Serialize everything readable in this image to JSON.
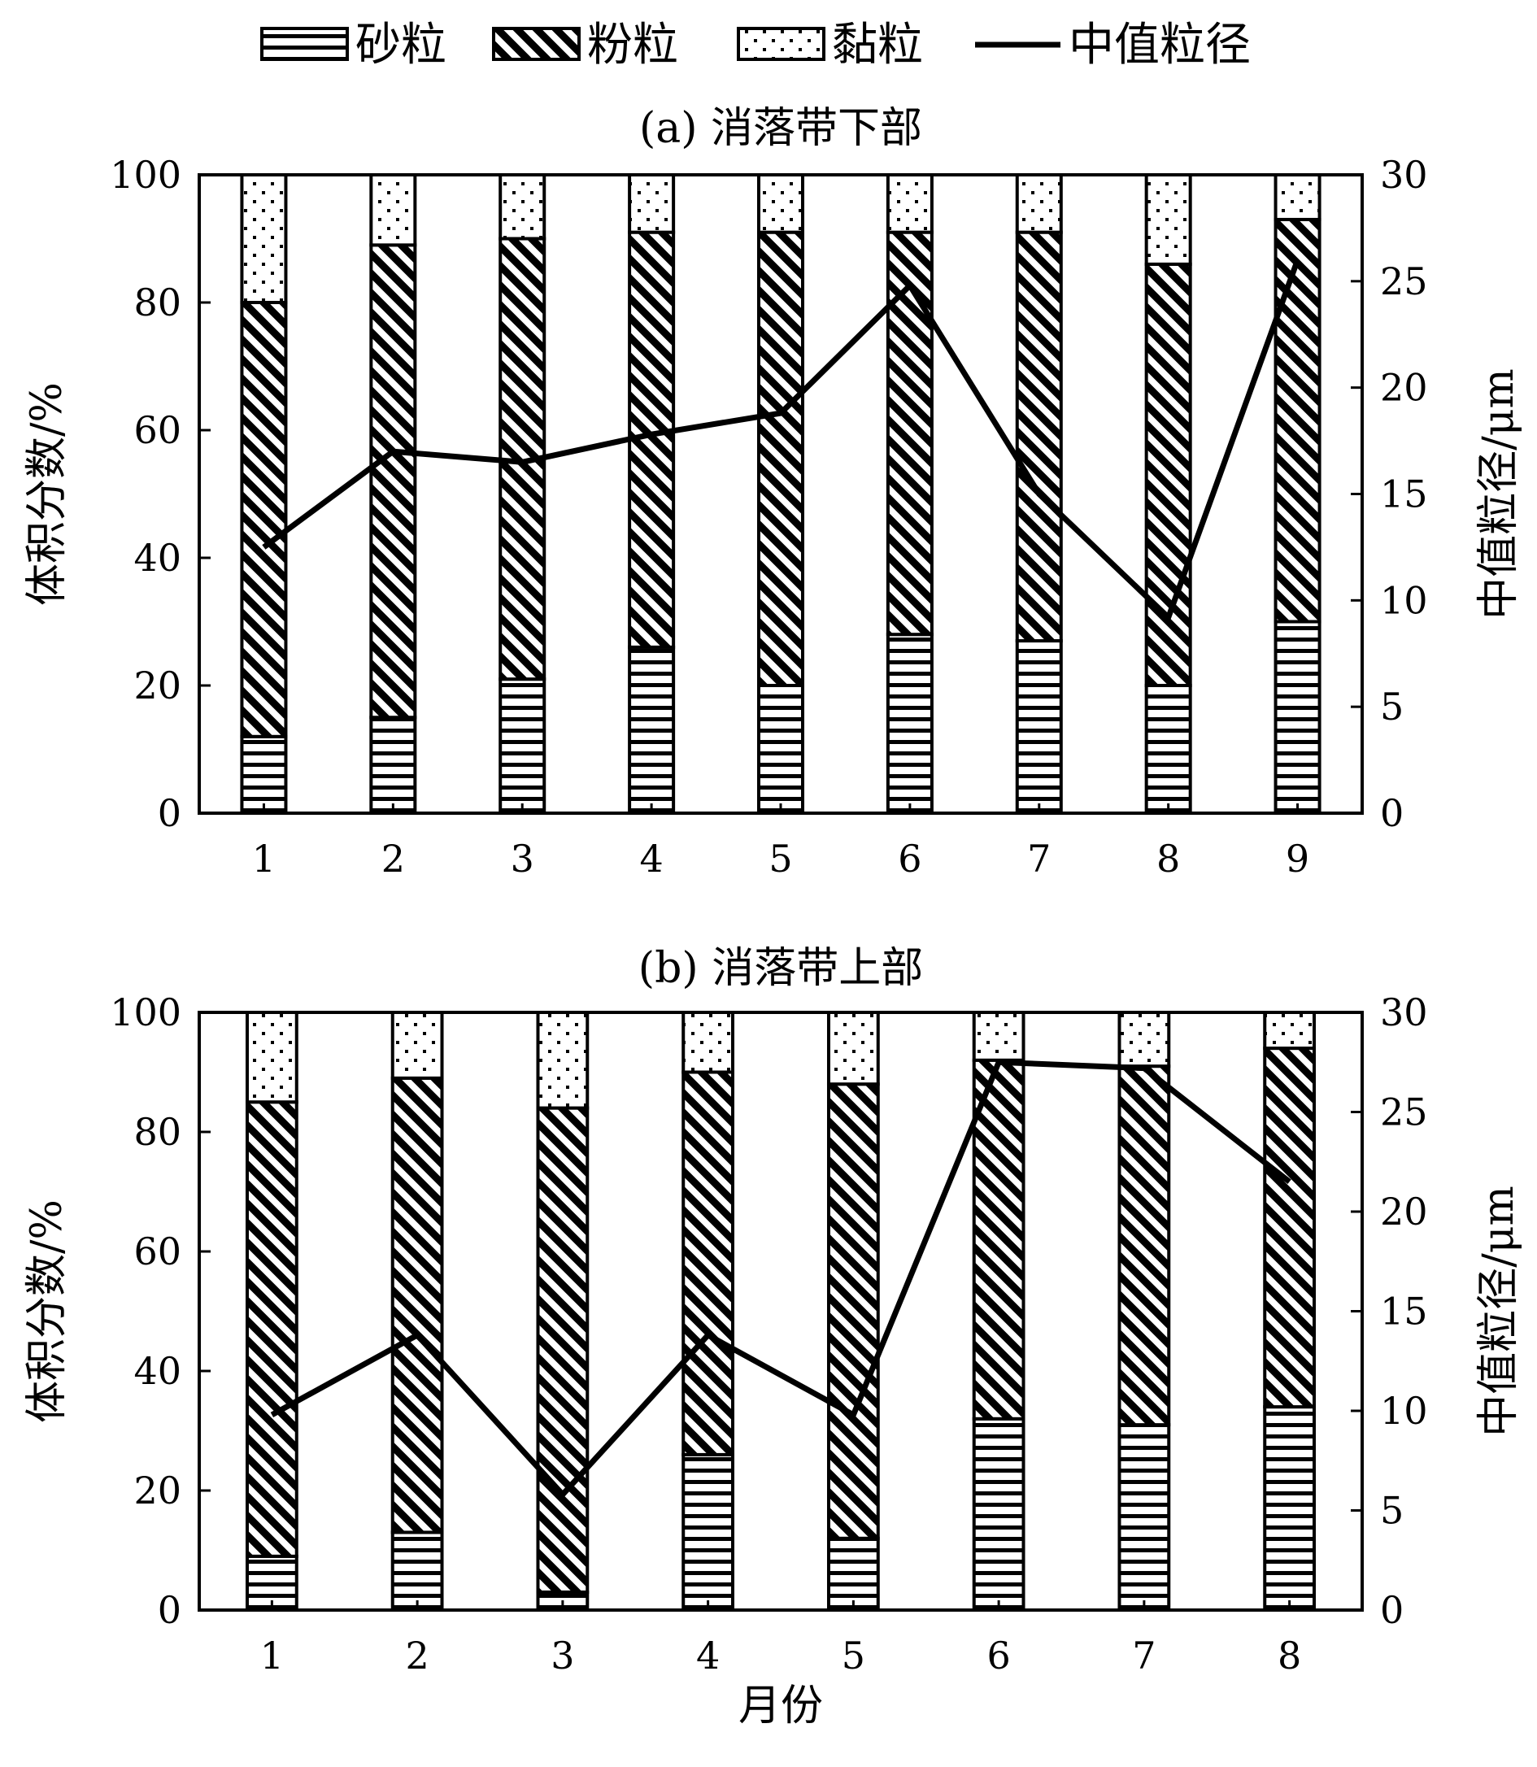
{
  "legend": [
    {
      "label": "砂粒",
      "pattern": "horiz"
    },
    {
      "label": "粉粒",
      "pattern": "diag"
    },
    {
      "label": "黏粒",
      "pattern": "dots"
    },
    {
      "label": "中值粒径",
      "pattern": "line"
    }
  ],
  "chart_data": [
    {
      "type": "bar",
      "stacked": true,
      "title": "(a) 消落带下部",
      "xlabel": "",
      "ylabel": "体积分数/%",
      "y2label": "中值粒径/μm",
      "ylim": [
        0,
        100
      ],
      "y2lim": [
        0,
        30
      ],
      "yticks": [
        0,
        20,
        40,
        60,
        80,
        100
      ],
      "y2ticks": [
        0,
        5,
        10,
        15,
        20,
        25,
        30
      ],
      "categories": [
        "1",
        "2",
        "3",
        "4",
        "5",
        "6",
        "7",
        "8",
        "9"
      ],
      "series": [
        {
          "name": "砂粒",
          "values": [
            12,
            15,
            21,
            26,
            20,
            28,
            27,
            20,
            30
          ]
        },
        {
          "name": "粉粒",
          "values": [
            68,
            74,
            69,
            65,
            71,
            63,
            64,
            66,
            63
          ]
        },
        {
          "name": "黏粒",
          "values": [
            20,
            11,
            10,
            9,
            9,
            9,
            9,
            14,
            7
          ]
        },
        {
          "name": "中值粒径",
          "axis": "right",
          "values": [
            12.5,
            17,
            16.5,
            17.8,
            18.8,
            24.8,
            15,
            9.2,
            26
          ]
        }
      ]
    },
    {
      "type": "bar",
      "stacked": true,
      "title": "(b) 消落带上部",
      "xlabel": "月份",
      "ylabel": "体积分数/%",
      "y2label": "中值粒径/μm",
      "ylim": [
        0,
        100
      ],
      "y2lim": [
        0,
        30
      ],
      "yticks": [
        0,
        20,
        40,
        60,
        80,
        100
      ],
      "y2ticks": [
        0,
        5,
        10,
        15,
        20,
        25,
        30
      ],
      "categories": [
        "1",
        "2",
        "3",
        "4",
        "5",
        "6",
        "7",
        "8"
      ],
      "series": [
        {
          "name": "砂粒",
          "values": [
            9,
            13,
            3,
            26,
            12,
            32,
            31,
            34
          ]
        },
        {
          "name": "粉粒",
          "values": [
            76,
            76,
            81,
            64,
            76,
            60,
            60,
            60
          ]
        },
        {
          "name": "黏粒",
          "values": [
            15,
            11,
            16,
            10,
            12,
            8,
            9,
            6
          ]
        },
        {
          "name": "中值粒径",
          "axis": "right",
          "values": [
            9.8,
            13.8,
            5.8,
            13.8,
            9.8,
            27.5,
            27.2,
            21.5
          ]
        }
      ]
    }
  ]
}
